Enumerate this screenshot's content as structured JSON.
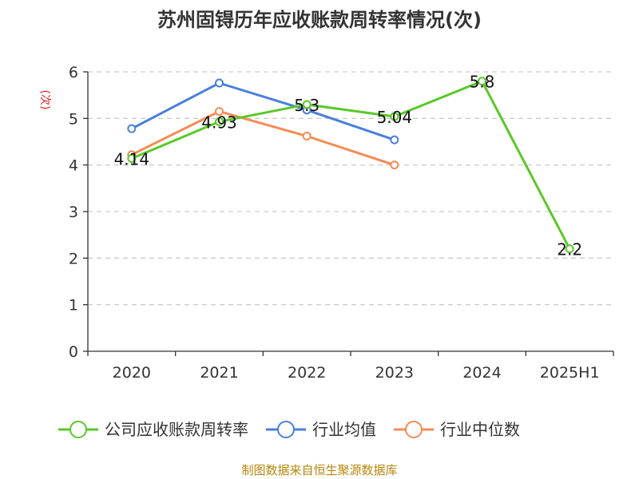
{
  "chart_data": {
    "type": "line",
    "title": "苏州固锝历年应收账款周转率情况(次)",
    "ylabel": "(次)",
    "xlabel": "",
    "categories": [
      "2020",
      "2021",
      "2022",
      "2023",
      "2024",
      "2025H1"
    ],
    "ylim": [
      0,
      6
    ],
    "yticks": [
      0,
      1,
      2,
      3,
      4,
      5,
      6
    ],
    "grid": "horizontal-dashed",
    "legend_position": "bottom",
    "series": [
      {
        "name": "公司应收账款周转率",
        "color": "#5ac828",
        "values": [
          4.14,
          4.93,
          5.3,
          5.04,
          5.8,
          2.2
        ],
        "data_labels": [
          "4.14",
          "4.93",
          "5.3",
          "5.04",
          "5.8",
          "2.2"
        ]
      },
      {
        "name": "行业均值",
        "color": "#4a7fdc",
        "values": [
          4.78,
          5.76,
          5.18,
          4.54,
          null,
          null
        ]
      },
      {
        "name": "行业中位数",
        "color": "#f58b54",
        "values": [
          4.22,
          5.15,
          4.62,
          4.0,
          null,
          null
        ]
      }
    ],
    "source": "制图数据来自恒生聚源数据库"
  }
}
